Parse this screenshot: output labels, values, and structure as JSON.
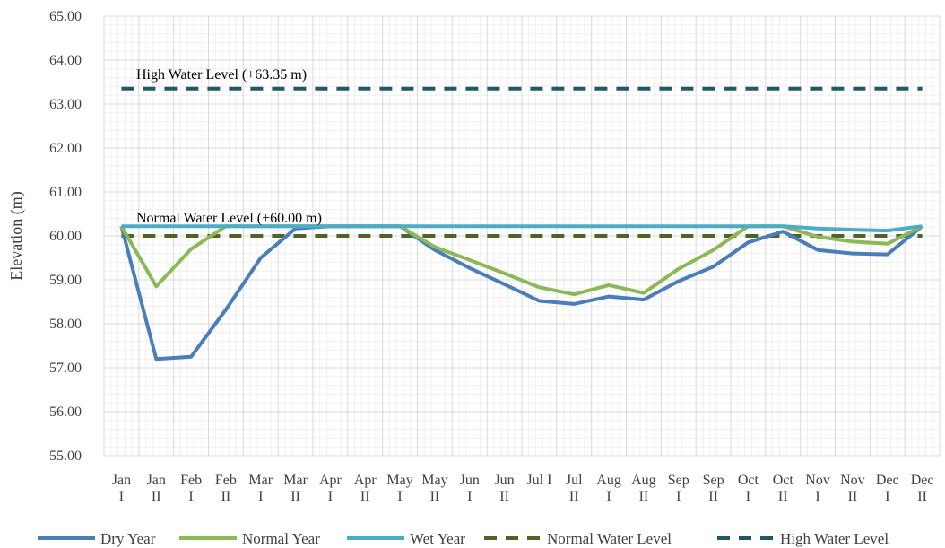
{
  "chart_data": {
    "type": "line",
    "categories": [
      [
        "Jan",
        "I"
      ],
      [
        "Jan",
        "II"
      ],
      [
        "Feb",
        "I"
      ],
      [
        "Feb",
        "II"
      ],
      [
        "Mar",
        "I"
      ],
      [
        "Mar",
        "II"
      ],
      [
        "Apr",
        "I"
      ],
      [
        "Apr",
        "II"
      ],
      [
        "May",
        "I"
      ],
      [
        "May",
        "II"
      ],
      [
        "Jun",
        "I"
      ],
      [
        "Jun",
        "II"
      ],
      [
        "Jul I",
        ""
      ],
      [
        "Jul",
        "II"
      ],
      [
        "Aug",
        "I"
      ],
      [
        "Aug",
        "II"
      ],
      [
        "Sep",
        "I"
      ],
      [
        "Sep",
        "II"
      ],
      [
        "Oct",
        "I"
      ],
      [
        "Oct",
        "II"
      ],
      [
        "Nov",
        "I"
      ],
      [
        "Nov",
        "II"
      ],
      [
        "Dec",
        "I"
      ],
      [
        "Dec",
        "II"
      ]
    ],
    "ylabel": "Elevation (m)",
    "ylim": [
      55,
      65
    ],
    "yticks": [
      "55.00",
      "56.00",
      "57.00",
      "58.00",
      "59.00",
      "60.00",
      "61.00",
      "62.00",
      "63.00",
      "64.00",
      "65.00"
    ],
    "grid": true,
    "legend_position": "bottom",
    "series": [
      {
        "name": "Dry Year",
        "color": "#4a7ebb",
        "style": "solid",
        "values": [
          60.22,
          57.2,
          57.25,
          58.32,
          59.5,
          60.17,
          60.22,
          60.22,
          60.22,
          59.68,
          59.27,
          58.9,
          58.52,
          58.45,
          58.62,
          58.55,
          58.97,
          59.3,
          59.85,
          60.1,
          59.68,
          59.6,
          59.58,
          60.22
        ]
      },
      {
        "name": "Normal Year",
        "color": "#8db856",
        "style": "solid",
        "values": [
          60.22,
          58.85,
          59.7,
          60.22,
          60.22,
          60.22,
          60.22,
          60.22,
          60.22,
          59.75,
          59.45,
          59.15,
          58.83,
          58.67,
          58.88,
          58.7,
          59.25,
          59.68,
          60.22,
          60.22,
          59.98,
          59.87,
          59.82,
          60.22
        ]
      },
      {
        "name": "Wet Year",
        "color": "#4bacc6",
        "style": "solid",
        "values": [
          60.22,
          60.22,
          60.22,
          60.22,
          60.22,
          60.22,
          60.22,
          60.22,
          60.22,
          60.22,
          60.22,
          60.22,
          60.22,
          60.22,
          60.22,
          60.22,
          60.22,
          60.22,
          60.22,
          60.22,
          60.17,
          60.14,
          60.12,
          60.22
        ]
      },
      {
        "name": "Normal Water Level",
        "color": "#4f6228",
        "style": "dashed",
        "values": [
          60,
          60,
          60,
          60,
          60,
          60,
          60,
          60,
          60,
          60,
          60,
          60,
          60,
          60,
          60,
          60,
          60,
          60,
          60,
          60,
          60,
          60,
          60,
          60
        ]
      },
      {
        "name": "High Water Level",
        "color": "#215968",
        "style": "dashed",
        "values": [
          63.35,
          63.35,
          63.35,
          63.35,
          63.35,
          63.35,
          63.35,
          63.35,
          63.35,
          63.35,
          63.35,
          63.35,
          63.35,
          63.35,
          63.35,
          63.35,
          63.35,
          63.35,
          63.35,
          63.35,
          63.35,
          63.35,
          63.35,
          63.35
        ]
      }
    ],
    "annotations": [
      {
        "text": "High Water Level (+63.35 m)",
        "y": 63.35
      },
      {
        "text": "Normal Water Level (+60.00 m)",
        "y": 60.0
      }
    ]
  }
}
